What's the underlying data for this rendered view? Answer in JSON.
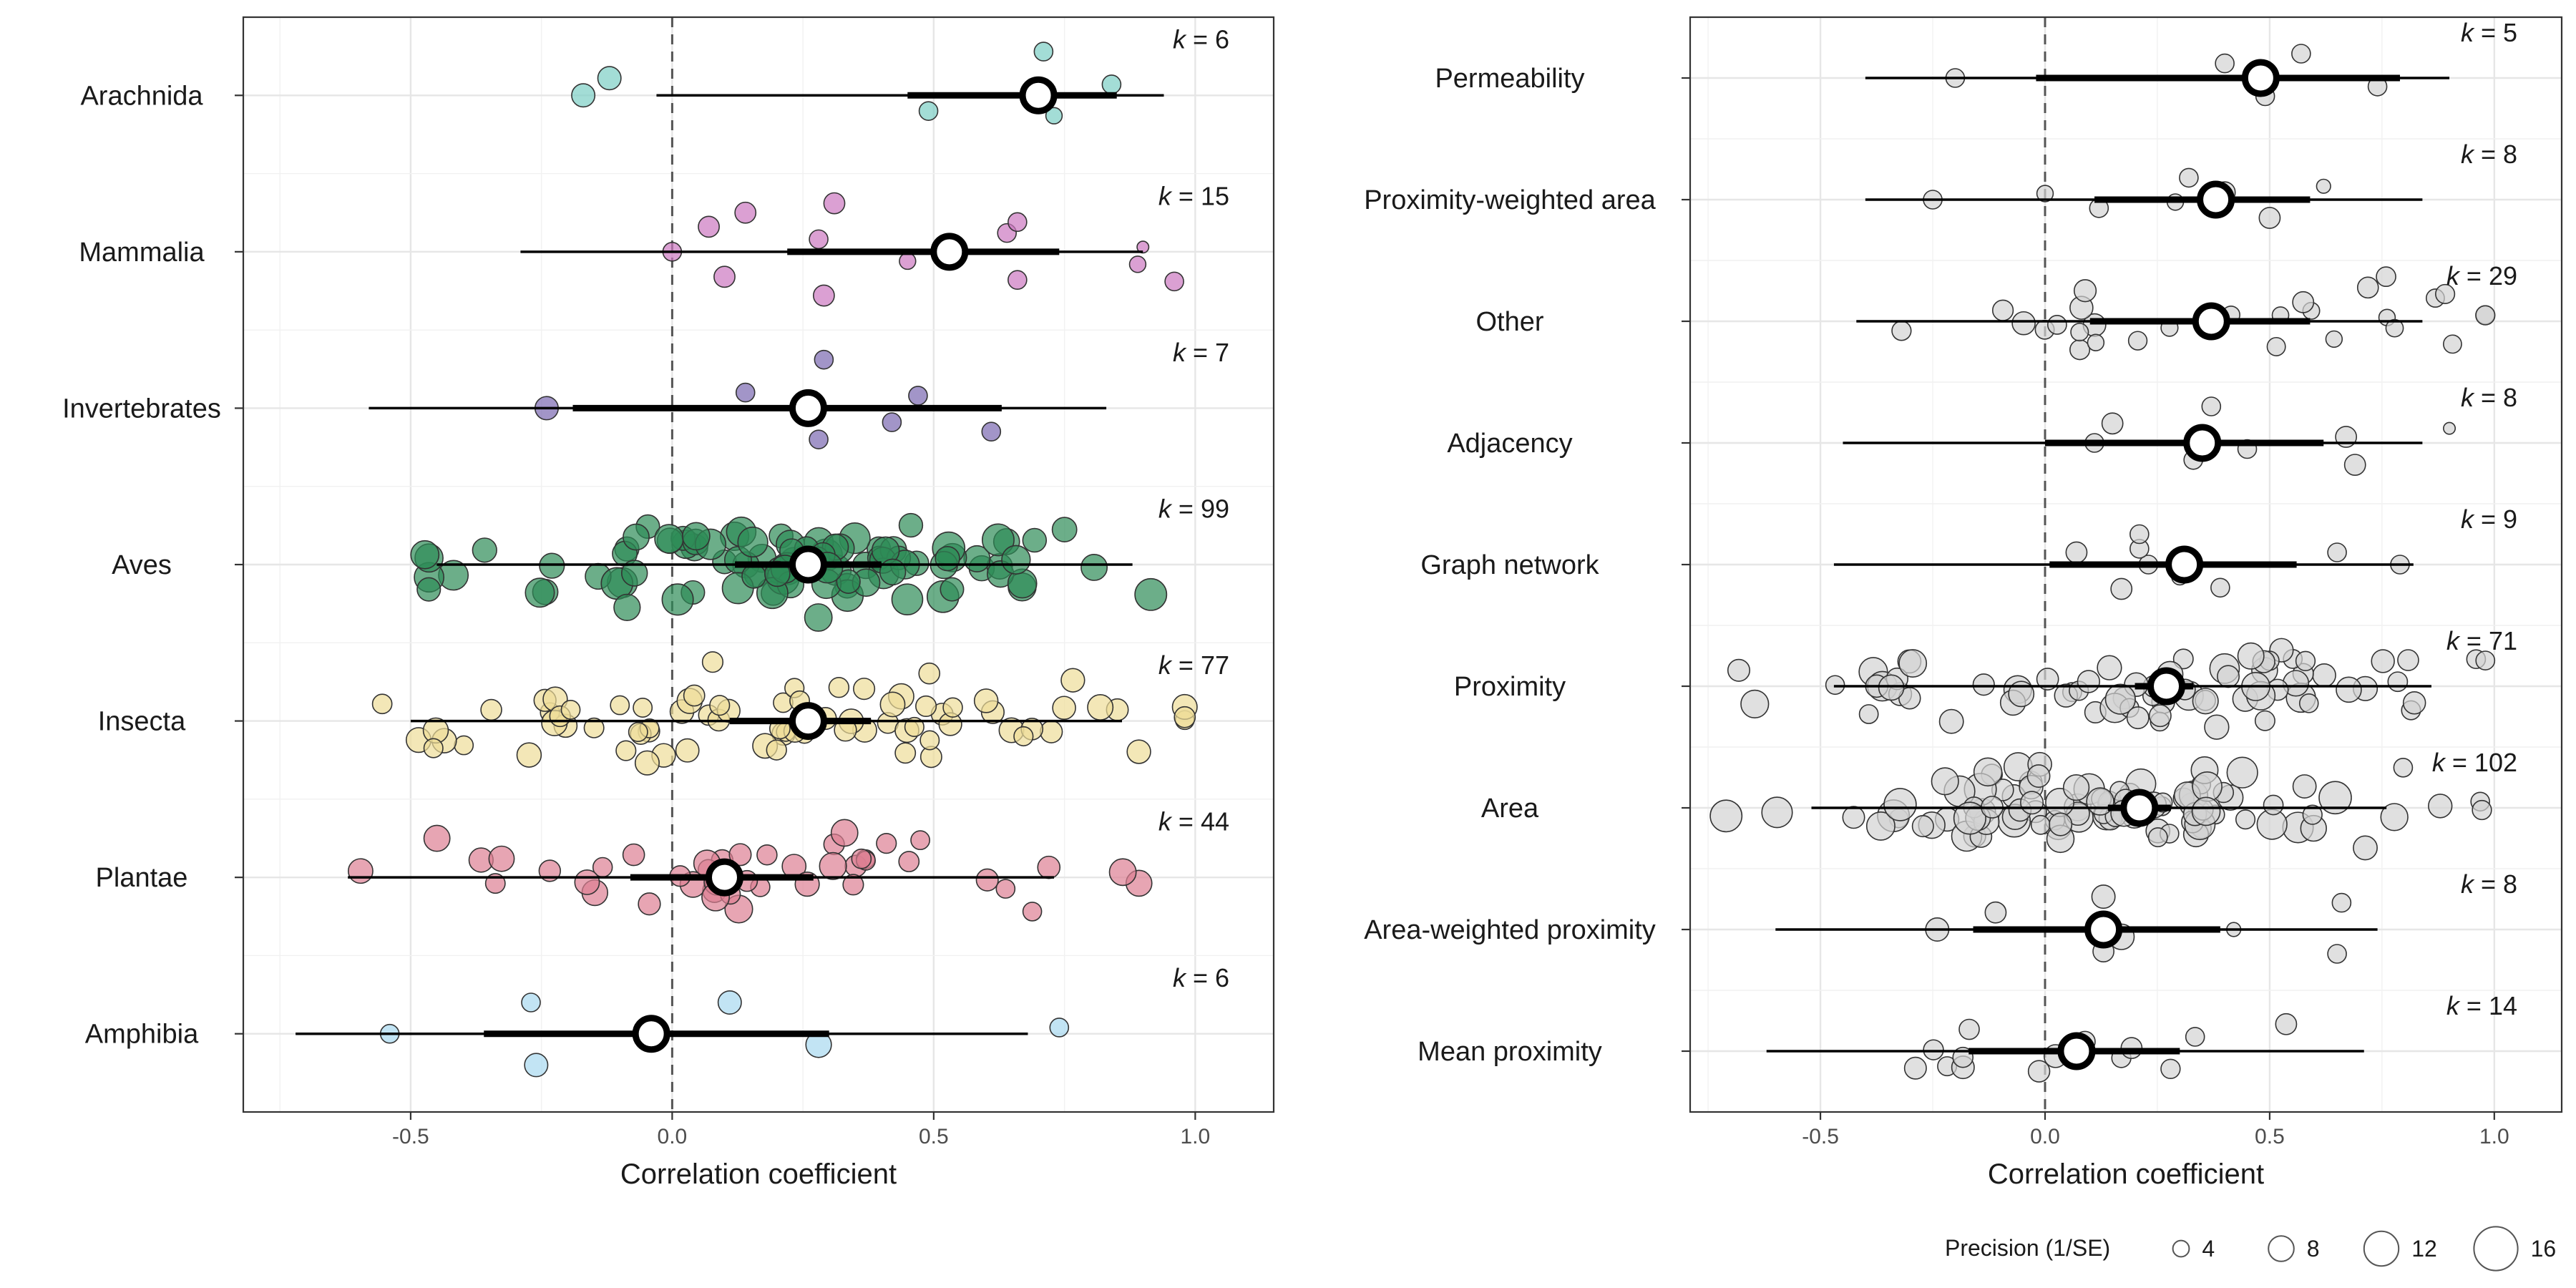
{
  "chart_data": [
    {
      "type": "scatter",
      "panel": "left",
      "xlabel": "Correlation coefficient",
      "xlim": [
        -0.82,
        1.15
      ],
      "xticks": [
        "-0.5",
        "0.0",
        "0.5",
        "1.0"
      ],
      "xtick_values": [
        -0.5,
        0.0,
        0.5,
        1.0
      ],
      "grid": true,
      "colors": {
        "Arachnida": "#7ccfc4",
        "Mammalia": "#cc77c0",
        "Invertebrates": "#7b68b0",
        "Aves": "#2e8b57",
        "Insecta": "#eedd99",
        "Plantae": "#dd7f93",
        "Amphibia": "#a8d8f0"
      },
      "categories": [
        "Arachnida",
        "Mammalia",
        "Invertebrates",
        "Aves",
        "Insecta",
        "Plantae",
        "Amphibia"
      ],
      "summary": [
        {
          "name": "Arachnida",
          "k_label": "k",
          "k_value": "= 6",
          "estimate": 0.7,
          "ci": [
            0.45,
            0.85
          ],
          "pi": [
            -0.03,
            0.94
          ]
        },
        {
          "name": "Mammalia",
          "k_label": "k",
          "k_value": "= 15",
          "estimate": 0.53,
          "ci": [
            0.22,
            0.74
          ],
          "pi": [
            -0.29,
            0.9
          ]
        },
        {
          "name": "Invertebrates",
          "k_label": "k",
          "k_value": "= 7",
          "estimate": 0.26,
          "ci": [
            -0.19,
            0.63
          ],
          "pi": [
            -0.58,
            0.83
          ]
        },
        {
          "name": "Aves",
          "k_label": "k",
          "k_value": "= 99",
          "estimate": 0.26,
          "ci": [
            0.12,
            0.4
          ],
          "pi": [
            -0.45,
            0.88
          ]
        },
        {
          "name": "Insecta",
          "k_label": "k",
          "k_value": "= 77",
          "estimate": 0.26,
          "ci": [
            0.11,
            0.38
          ],
          "pi": [
            -0.5,
            0.86
          ]
        },
        {
          "name": "Plantae",
          "k_label": "k",
          "k_value": "= 44",
          "estimate": 0.1,
          "ci": [
            -0.08,
            0.27
          ],
          "pi": [
            -0.62,
            0.73
          ]
        },
        {
          "name": "Amphibia",
          "k_label": "k",
          "k_value": "= 6",
          "estimate": -0.04,
          "ci": [
            -0.36,
            0.3
          ],
          "pi": [
            -0.72,
            0.68
          ]
        }
      ],
      "points": {
        "Arachnida": [
          [
            0.49,
            0.1,
            5
          ],
          [
            -0.17,
            0.0,
            7
          ],
          [
            -0.12,
            -0.11,
            7
          ],
          [
            0.84,
            -0.07,
            5
          ],
          [
            0.71,
            -0.28,
            5
          ],
          [
            0.73,
            0.13,
            4
          ]
        ],
        "Mammalia": [
          [
            0.29,
            0.28,
            6
          ],
          [
            0.1,
            0.16,
            6
          ],
          [
            0.66,
            0.18,
            5
          ],
          [
            0.96,
            0.19,
            5
          ],
          [
            0.89,
            0.08,
            4
          ],
          [
            0.0,
            0.0,
            5
          ],
          [
            0.28,
            -0.08,
            5
          ],
          [
            0.07,
            -0.16,
            6
          ],
          [
            0.14,
            -0.25,
            6
          ],
          [
            0.31,
            -0.31,
            6
          ],
          [
            0.64,
            -0.12,
            5
          ],
          [
            0.66,
            -0.19,
            5
          ],
          [
            0.9,
            -0.03,
            2
          ],
          [
            0.45,
            0.06,
            4
          ],
          [
            0.52,
            0.0,
            5
          ]
        ],
        "Invertebrates": [
          [
            0.28,
            0.2,
            5
          ],
          [
            0.42,
            0.09,
            5
          ],
          [
            0.61,
            0.15,
            5
          ],
          [
            -0.24,
            0.0,
            7
          ],
          [
            0.14,
            -0.1,
            5
          ],
          [
            0.47,
            -0.08,
            5
          ],
          [
            0.29,
            -0.31,
            5
          ]
        ],
        "Aves": "gen:99:0.22:0.33:7:11:20:45",
        "Insecta": "gen:77:0.30:0.42:5:8:3:60",
        "Plantae": "gen:44:0.15:0.38:5:9:7:30",
        "Amphibia": [
          [
            -0.26,
            0.2,
            7
          ],
          [
            0.28,
            0.07,
            8
          ],
          [
            -0.54,
            0.0,
            5
          ],
          [
            0.74,
            -0.04,
            5
          ],
          [
            -0.27,
            -0.2,
            5
          ],
          [
            0.11,
            -0.2,
            7
          ]
        ]
      },
      "sizes_note": "point size scales with precision (1/SE)"
    },
    {
      "type": "scatter",
      "panel": "right",
      "xlabel": "Correlation coefficient",
      "xlim": [
        -0.79,
        1.15
      ],
      "xticks": [
        "-0.5",
        "0.0",
        "0.5",
        "1.0"
      ],
      "xtick_values": [
        -0.5,
        0.0,
        0.5,
        1.0
      ],
      "grid": true,
      "point_color": "#d3d3d3",
      "categories": [
        "Permeability",
        "Proximity-weighted area",
        "Other",
        "Adjacency",
        "Graph network",
        "Proximity",
        "Area",
        "Area-weighted proximity",
        "Mean proximity"
      ],
      "summary": [
        {
          "name": "Permeability",
          "k_label": "k",
          "k_value": "= 5",
          "estimate": 0.48,
          "ci": [
            -0.02,
            0.79
          ],
          "pi": [
            -0.4,
            0.9
          ]
        },
        {
          "name": "Proximity-weighted area",
          "k_label": "k",
          "k_value": "= 8",
          "estimate": 0.38,
          "ci": [
            0.11,
            0.59
          ],
          "pi": [
            -0.4,
            0.84
          ]
        },
        {
          "name": "Other",
          "k_label": "k",
          "k_value": "= 29",
          "estimate": 0.37,
          "ci": [
            0.1,
            0.59
          ],
          "pi": [
            -0.42,
            0.84
          ]
        },
        {
          "name": "Adjacency",
          "k_label": "k",
          "k_value": "= 8",
          "estimate": 0.35,
          "ci": [
            0.0,
            0.62
          ],
          "pi": [
            -0.45,
            0.84
          ]
        },
        {
          "name": "Graph network",
          "k_label": "k",
          "k_value": "= 9",
          "estimate": 0.31,
          "ci": [
            0.01,
            0.56
          ],
          "pi": [
            -0.47,
            0.82
          ]
        },
        {
          "name": "Proximity",
          "k_label": "k",
          "k_value": "= 71",
          "estimate": 0.27,
          "ci": [
            0.2,
            0.33
          ],
          "pi": [
            -0.47,
            0.86
          ]
        },
        {
          "name": "Area",
          "k_label": "k",
          "k_value": "= 102",
          "estimate": 0.21,
          "ci": [
            0.14,
            0.28
          ],
          "pi": [
            -0.52,
            0.76
          ]
        },
        {
          "name": "Area-weighted proximity",
          "k_label": "k",
          "k_value": "= 8",
          "estimate": 0.13,
          "ci": [
            -0.16,
            0.39
          ],
          "pi": [
            -0.6,
            0.74
          ]
        },
        {
          "name": "Mean proximity",
          "k_label": "k",
          "k_value": "= 14",
          "estimate": 0.07,
          "ci": [
            -0.17,
            0.3
          ],
          "pi": [
            -0.62,
            0.71
          ]
        }
      ],
      "points": {
        "Permeability": [
          [
            -0.2,
            0.0,
            5
          ],
          [
            0.49,
            0.15,
            5
          ],
          [
            0.74,
            0.07,
            5
          ],
          [
            0.4,
            -0.12,
            5
          ],
          [
            0.57,
            -0.2,
            5
          ]
        ],
        "Proximity-weighted area": [
          [
            0.12,
            0.07,
            5
          ],
          [
            0.5,
            0.15,
            6
          ],
          [
            -0.25,
            0.0,
            5
          ],
          [
            0.0,
            -0.05,
            4
          ],
          [
            0.4,
            -0.06,
            6
          ],
          [
            0.32,
            -0.18,
            5
          ],
          [
            0.62,
            -0.11,
            3
          ],
          [
            0.29,
            0.02,
            4
          ]
        ],
        "Other": "gen:29:0.55:0.45:4:7:11:20",
        "Adjacency": [
          [
            0.33,
            0.14,
            5
          ],
          [
            0.45,
            0.05,
            5
          ],
          [
            0.69,
            0.18,
            6
          ],
          [
            0.11,
            0.0,
            5
          ],
          [
            0.67,
            -0.05,
            6
          ],
          [
            0.15,
            -0.16,
            6
          ],
          [
            0.37,
            -0.3,
            5
          ],
          [
            0.9,
            -0.12,
            2
          ]
        ],
        "Graph network": [
          [
            0.17,
            0.2,
            6
          ],
          [
            0.39,
            0.19,
            5
          ],
          [
            0.79,
            0.0,
            5
          ],
          [
            0.23,
            0.0,
            5
          ],
          [
            0.21,
            -0.13,
            5
          ],
          [
            0.07,
            -0.1,
            6
          ],
          [
            0.21,
            -0.25,
            5
          ],
          [
            0.65,
            -0.1,
            5
          ],
          [
            0.3,
            0.1,
            4
          ]
        ],
        "Proximity": "gen:71:0.30:0.40:5:10:13:50",
        "Area": "gen:102:0.15:0.35:5:11:17:90",
        "Area-weighted proximity": [
          [
            0.17,
            0.06,
            8
          ],
          [
            0.13,
            0.18,
            6
          ],
          [
            -0.24,
            0.0,
            7
          ],
          [
            0.65,
            0.2,
            5
          ],
          [
            0.42,
            0.0,
            3
          ],
          [
            -0.11,
            -0.14,
            6
          ],
          [
            0.13,
            -0.27,
            7
          ],
          [
            0.66,
            -0.22,
            5
          ]
        ],
        "Mean proximity": "gen:14:0.05:0.33:5:7:19:14"
      }
    }
  ],
  "legend": {
    "title": "Precision (1/SE)",
    "items": [
      {
        "label": "4",
        "level": 4
      },
      {
        "label": "8",
        "level": 8
      },
      {
        "label": "12",
        "level": 12
      },
      {
        "label": "16",
        "level": 16
      }
    ]
  }
}
